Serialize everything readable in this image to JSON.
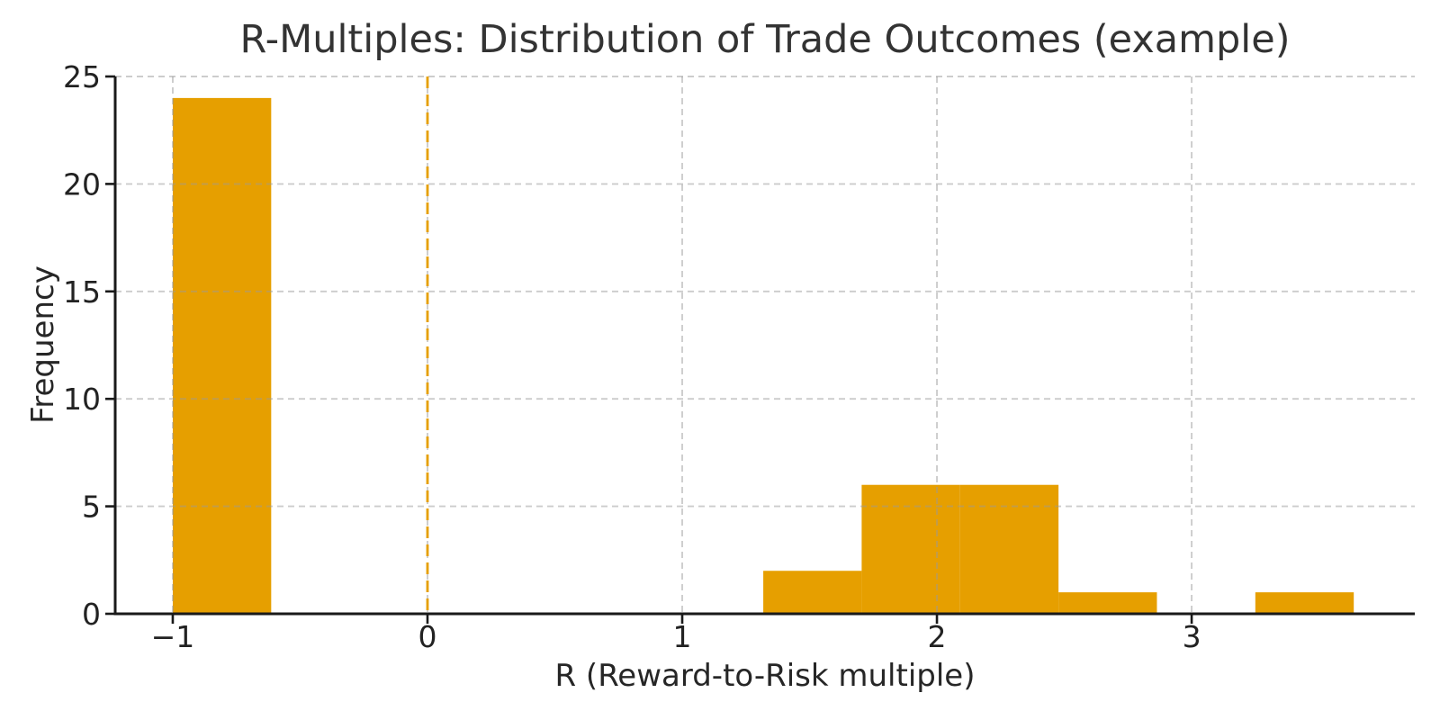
{
  "chart_data": {
    "type": "bar",
    "subtype": "histogram",
    "title": "R-Multiples: Distribution of Trade Outcomes (example)",
    "xlabel": "R (Reward-to-Risk multiple)",
    "ylabel": "Frequency",
    "bin_edges": [
      -1.0,
      -0.6136,
      -0.2273,
      0.1591,
      0.5455,
      0.9318,
      1.3182,
      1.7045,
      2.0909,
      2.4773,
      2.8636,
      3.25,
      3.6364
    ],
    "counts": [
      24,
      0,
      0,
      0,
      0,
      0,
      2,
      6,
      6,
      1,
      0,
      1
    ],
    "xticks": [
      -1,
      0,
      1,
      2,
      3
    ],
    "xtick_labels": [
      "−1",
      "0",
      "1",
      "2",
      "3"
    ],
    "yticks": [
      0,
      5,
      10,
      15,
      20,
      25
    ],
    "ytick_labels": [
      "0",
      "5",
      "10",
      "15",
      "20",
      "25"
    ],
    "xlim": [
      -1.226,
      3.876
    ],
    "ylim": [
      0,
      25
    ],
    "grid": true,
    "grid_style": "dashed",
    "legend": "none",
    "vline": {
      "x": 0,
      "style": "dashed",
      "color": "#E69F00"
    },
    "colors": {
      "bar": "#E69F00",
      "grid": "#9A9A9A",
      "axis": "#1A1A1A",
      "text": "#222222",
      "title": "#333333",
      "background": "#FFFFFF"
    }
  }
}
